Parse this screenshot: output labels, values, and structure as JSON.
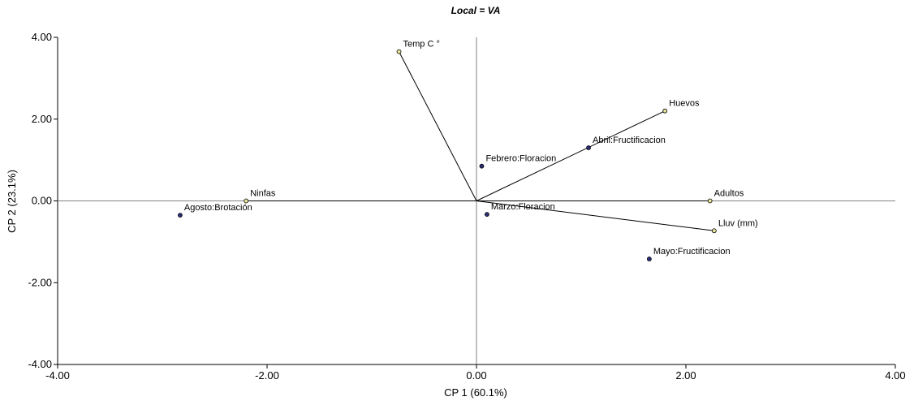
{
  "chart_data": {
    "type": "scatter",
    "title": "Local = VA",
    "xlabel": "CP 1 (60.1%)",
    "ylabel": "CP 2 (23.1%)",
    "xlim": [
      -4,
      4
    ],
    "ylim": [
      -4,
      4
    ],
    "x_ticks": [
      "-4.00",
      "-2.00",
      "0.00",
      "2.00",
      "4.00"
    ],
    "y_ticks": [
      "4.00",
      "2.00",
      "0.00",
      "-2.00",
      "-4.00"
    ],
    "grid": false,
    "colors": {
      "observation": "#2b2f7a",
      "variable": "#e8e69a",
      "vector": "#000000",
      "reference_line": "#808080"
    },
    "observations": [
      {
        "label": "Febrero:Floracion",
        "x": 0.05,
        "y": 0.85
      },
      {
        "label": "Abril:Fructificacion",
        "x": 1.07,
        "y": 1.3
      },
      {
        "label": "Agosto:Brotación",
        "x": -2.83,
        "y": -0.35
      },
      {
        "label": "Marzo:Floracion",
        "x": 0.1,
        "y": -0.33
      },
      {
        "label": "Mayo:Fructificacion",
        "x": 1.65,
        "y": -1.42
      }
    ],
    "variables": [
      {
        "label": "Temp C °",
        "x": -0.74,
        "y": 3.65
      },
      {
        "label": "Huevos",
        "x": 1.8,
        "y": 2.2
      },
      {
        "label": "Adultos",
        "x": 2.23,
        "y": 0.0
      },
      {
        "label": "Lluv (mm)",
        "x": 2.27,
        "y": -0.73
      },
      {
        "label": "Ninfas",
        "x": -2.2,
        "y": 0.0
      }
    ]
  }
}
